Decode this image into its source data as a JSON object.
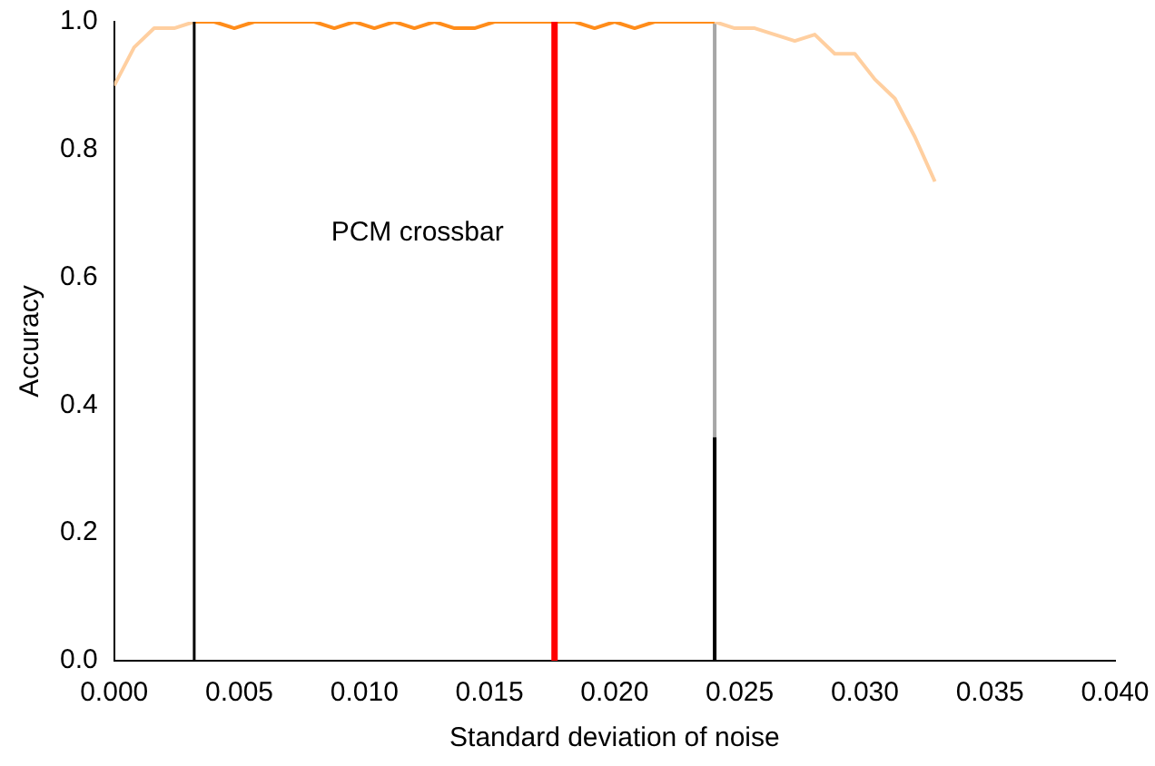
{
  "chart_data": {
    "type": "line",
    "xlabel": "Standard deviation of noise",
    "ylabel": "Accuracy",
    "xlim": [
      0,
      0.04
    ],
    "ylim": [
      0,
      1.0
    ],
    "xticks": [
      {
        "value": 0,
        "label": "0.000"
      },
      {
        "value": 0.005,
        "label": "0.005"
      },
      {
        "value": 0.01,
        "label": "0.010"
      },
      {
        "value": 0.015,
        "label": "0.015"
      },
      {
        "value": 0.02,
        "label": "0.020"
      },
      {
        "value": 0.025,
        "label": "0.025"
      },
      {
        "value": 0.03,
        "label": "0.030"
      },
      {
        "value": 0.035,
        "label": "0.035"
      },
      {
        "value": 0.04,
        "label": "0.040"
      }
    ],
    "yticks": [
      {
        "value": 0,
        "label": "0.0"
      },
      {
        "value": 0.2,
        "label": "0.2"
      },
      {
        "value": 0.4,
        "label": "0.4"
      },
      {
        "value": 0.6,
        "label": "0.6"
      },
      {
        "value": 0.8,
        "label": "0.8"
      },
      {
        "value": 1.0,
        "label": "1.0"
      }
    ],
    "grid": false,
    "legend": false,
    "marker": "none",
    "line_style": "solid",
    "series": [
      {
        "color": "#ffcfa0",
        "x": [
          0,
          0.0008,
          0.0016,
          0.0024,
          0.0032,
          0.012,
          0.024,
          0.0248,
          0.0256,
          0.0264,
          0.0272,
          0.028,
          0.0288,
          0.0296,
          0.0304,
          0.0312,
          0.032,
          0.0328
        ],
        "values": [
          0.9,
          0.96,
          0.99,
          0.99,
          1.0,
          null,
          1.0,
          0.99,
          0.99,
          0.98,
          0.97,
          0.98,
          0.95,
          0.95,
          0.91,
          0.88,
          0.82,
          0.75
        ]
      },
      {
        "color": "#ff8c1a",
        "x": [
          0.0032,
          0.004,
          0.0048,
          0.0056,
          0.0064,
          0.0072,
          0.008,
          0.0088,
          0.0096,
          0.0104,
          0.0112,
          0.012,
          0.0128,
          0.0136,
          0.0144,
          0.0152,
          0.016,
          0.0168,
          0.0176,
          0.0184,
          0.0192,
          0.02,
          0.0208,
          0.0216,
          0.0224,
          0.0232,
          0.024
        ],
        "values": [
          1.0,
          1.0,
          0.99,
          1.0,
          1.0,
          1.0,
          1.0,
          0.99,
          1.0,
          0.99,
          1.0,
          0.99,
          1.0,
          0.99,
          0.99,
          1.0,
          1.0,
          1.0,
          1.0,
          1.0,
          0.99,
          1.0,
          0.99,
          1.0,
          1.0,
          1.0,
          1.0
        ]
      },
      {
        "color": "#a6a6a6",
        "x": [
          0.024,
          0.024
        ],
        "values": [
          0.35,
          1.0
        ]
      },
      {
        "color": "#000000",
        "x": [
          0.024,
          0.024
        ],
        "values": [
          0,
          0.35
        ]
      }
    ],
    "ref_lines": [
      {
        "axis": "x",
        "value": 0.0032,
        "color": "#000000"
      },
      {
        "axis": "x",
        "value": 0.0176,
        "color": "#ff0000",
        "label": "PCM crossbar"
      }
    ]
  }
}
